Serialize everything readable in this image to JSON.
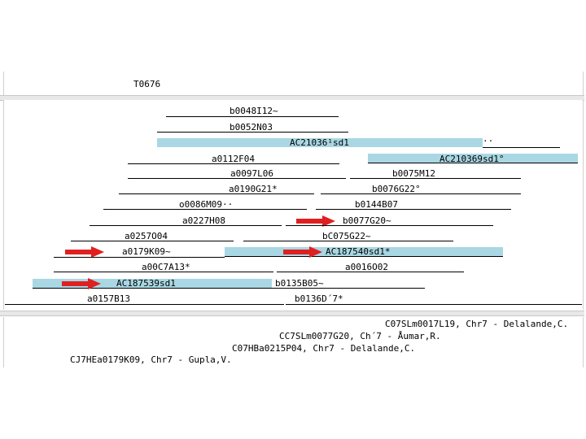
{
  "header": {
    "track_id": "T0676"
  },
  "clones": [
    {
      "id": "c1",
      "label": "b0048I12~"
    },
    {
      "id": "c2",
      "label": "b0052N03"
    },
    {
      "id": "c3",
      "label": "AC21036¹sd1"
    },
    {
      "id": "c3b",
      "label": "··"
    },
    {
      "id": "c4",
      "label": "a0112F04"
    },
    {
      "id": "c5",
      "label": "AC210369sd1°"
    },
    {
      "id": "c6",
      "label": "a0097L06"
    },
    {
      "id": "c7",
      "label": "b0075M12"
    },
    {
      "id": "c8",
      "label": "a0190G21*"
    },
    {
      "id": "c9",
      "label": "b0076G22°"
    },
    {
      "id": "c10",
      "label": "o0086M09··"
    },
    {
      "id": "c11",
      "label": "b0144B07"
    },
    {
      "id": "c12",
      "label": "a0227H08"
    },
    {
      "id": "c13",
      "label": "b0077G20~"
    },
    {
      "id": "c14",
      "label": "a0257O04"
    },
    {
      "id": "c15",
      "label": "bC075G22~"
    },
    {
      "id": "c16",
      "label": "a0179K09~"
    },
    {
      "id": "c17",
      "label": "AC187540sd1*"
    },
    {
      "id": "c18",
      "label": "a00C7A13*"
    },
    {
      "id": "c19",
      "label": "a0016O02"
    },
    {
      "id": "c20",
      "label": "AC187539sd1"
    },
    {
      "id": "c21",
      "label": "b0135B05~"
    },
    {
      "id": "c22",
      "label": "a0157B13"
    },
    {
      "id": "c23",
      "label": "b0136D´7*"
    }
  ],
  "footer": {
    "lines": [
      "C07SLm0017L19, Chr7 - Delalande,C.",
      "CC7SLm0077G20, Ch´7 - Åumar,R.",
      "C07HBa0215P04, Chr7 - Delalande,C.",
      "CJ7HEa0179K09, Chr7 - Gupla,V."
    ]
  },
  "colors": {
    "accent_bar": "#a9d7e3",
    "arrow": "#e02020"
  }
}
